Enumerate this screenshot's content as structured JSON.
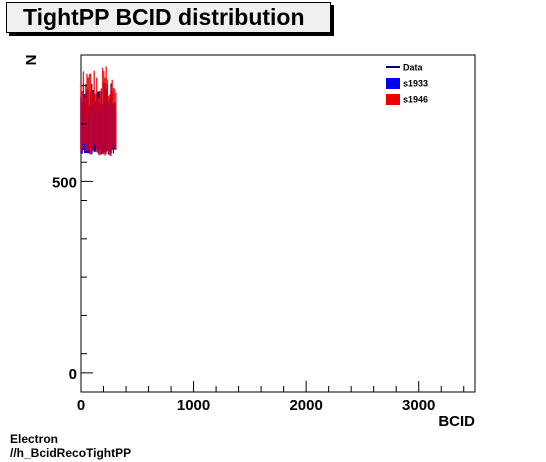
{
  "title": "TightPP BCID distribution",
  "footer": {
    "line1": "Electron",
    "line2": "//h_BcidRecoTightPP"
  },
  "chart_data": {
    "type": "bar",
    "xlabel": "BCID",
    "ylabel": "N",
    "xlim": [
      0,
      3500
    ],
    "ylim": [
      -50,
      830
    ],
    "x_ticks": [
      0,
      1000,
      2000,
      3000
    ],
    "y_ticks": [
      0,
      500
    ],
    "grid": false,
    "legend_position": "top-right",
    "bin_range": [
      0,
      310
    ],
    "series": [
      {
        "name": "Data",
        "color": "#00007f",
        "style": "line",
        "band_low": 570,
        "band_high": 760
      },
      {
        "name": "s1933",
        "color": "#0000ee",
        "style": "fill",
        "band_low": 570,
        "band_high": 730
      },
      {
        "name": "s1946",
        "color": "#ee0000",
        "style": "fill",
        "band_low": 565,
        "band_high": 800
      }
    ]
  }
}
